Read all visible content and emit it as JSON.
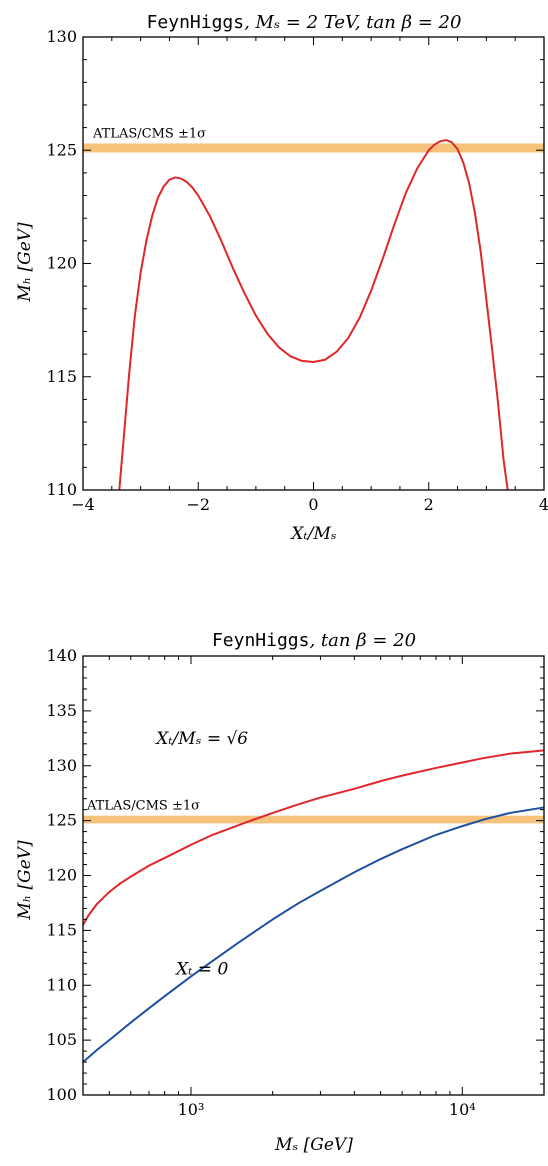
{
  "chart_data": [
    {
      "type": "line",
      "title_code": "FeynHiggs",
      "title_math": ",   Mₛ = 2 TeV,   tan β = 20",
      "xlabel": "Xₜ/Mₛ",
      "ylabel": "Mₕ  [GeV]",
      "xlim": [
        -4,
        4
      ],
      "ylim": [
        110,
        130
      ],
      "xticks": [
        -4,
        -2,
        0,
        2,
        4
      ],
      "xtick_labels": [
        "−4",
        "−2",
        "0",
        "2",
        "4"
      ],
      "yticks": [
        110,
        115,
        120,
        125,
        130
      ],
      "ytick_labels": [
        "110",
        "115",
        "120",
        "125",
        "130"
      ],
      "band": {
        "label": "ATLAS/CMS ±1σ",
        "center": 125.1,
        "half_width": 0.2,
        "color": "#f7c37a"
      },
      "series": [
        {
          "color": "#e0262b",
          "x": [
            -3.37,
            -3.3,
            -3.2,
            -3.1,
            -3.0,
            -2.9,
            -2.8,
            -2.7,
            -2.6,
            -2.5,
            -2.4,
            -2.3,
            -2.2,
            -2.1,
            -2.0,
            -1.8,
            -1.6,
            -1.4,
            -1.2,
            -1.0,
            -0.8,
            -0.6,
            -0.4,
            -0.2,
            0.0,
            0.2,
            0.4,
            0.6,
            0.8,
            1.0,
            1.2,
            1.4,
            1.6,
            1.8,
            2.0,
            2.1,
            2.2,
            2.3,
            2.4,
            2.5,
            2.6,
            2.7,
            2.8,
            2.9,
            3.0,
            3.1,
            3.2,
            3.3,
            3.37
          ],
          "y": [
            110.0,
            112.1,
            115.1,
            117.7,
            119.6,
            121.0,
            122.1,
            122.9,
            123.4,
            123.7,
            123.8,
            123.75,
            123.6,
            123.35,
            123.0,
            122.1,
            121.0,
            119.8,
            118.7,
            117.7,
            116.9,
            116.3,
            115.9,
            115.7,
            115.65,
            115.75,
            116.1,
            116.7,
            117.6,
            118.8,
            120.2,
            121.7,
            123.1,
            124.2,
            125.0,
            125.25,
            125.4,
            125.45,
            125.35,
            125.05,
            124.45,
            123.55,
            122.25,
            120.55,
            118.4,
            116.2,
            113.9,
            111.3,
            110.0
          ]
        }
      ]
    },
    {
      "type": "line",
      "title_code": "FeynHiggs",
      "title_math": ",    tan β = 20",
      "xlabel": "Mₛ  [GeV]",
      "ylabel": "Mₕ  [GeV]",
      "xscale": "log",
      "xlim": [
        400,
        20000
      ],
      "ylim": [
        100,
        140
      ],
      "xtick_labels": [
        "10³",
        "10⁴"
      ],
      "xticks": [
        1000,
        10000
      ],
      "yticks": [
        100,
        105,
        110,
        115,
        120,
        125,
        130,
        135,
        140
      ],
      "ytick_labels": [
        "100",
        "105",
        "110",
        "115",
        "120",
        "125",
        "130",
        "135",
        "140"
      ],
      "band": {
        "label": "ATLAS/CMS ±1σ",
        "center": 125.1,
        "half_width": 0.35,
        "color": "#f7c37a"
      },
      "annotations": [
        {
          "text": "Xₜ/Mₛ = √6",
          "x": 1100,
          "y": 132.0
        },
        {
          "text": "Xₜ = 0",
          "x": 1100,
          "y": 111.0
        }
      ],
      "series": [
        {
          "color": "#e0262b",
          "x": [
            400,
            420,
            450,
            500,
            550,
            600,
            700,
            800,
            1000,
            1200,
            1500,
            2000,
            2500,
            3000,
            4000,
            5000,
            6000,
            8000,
            10000,
            12000,
            15000,
            20000
          ],
          "y": [
            115.5,
            116.4,
            117.4,
            118.5,
            119.3,
            119.9,
            120.9,
            121.6,
            122.8,
            123.7,
            124.6,
            125.7,
            126.5,
            127.1,
            127.9,
            128.6,
            129.1,
            129.8,
            130.3,
            130.7,
            131.1,
            131.4
          ]
        },
        {
          "color": "#1f4fa3",
          "x": [
            400,
            450,
            500,
            600,
            700,
            800,
            1000,
            1200,
            1500,
            2000,
            2500,
            3000,
            4000,
            5000,
            6000,
            8000,
            10000,
            12000,
            15000,
            20000
          ],
          "y": [
            103.0,
            104.1,
            105.0,
            106.6,
            107.9,
            109.0,
            110.8,
            112.2,
            113.9,
            116.0,
            117.5,
            118.6,
            120.3,
            121.5,
            122.4,
            123.7,
            124.5,
            125.1,
            125.7,
            126.2
          ]
        }
      ]
    }
  ]
}
